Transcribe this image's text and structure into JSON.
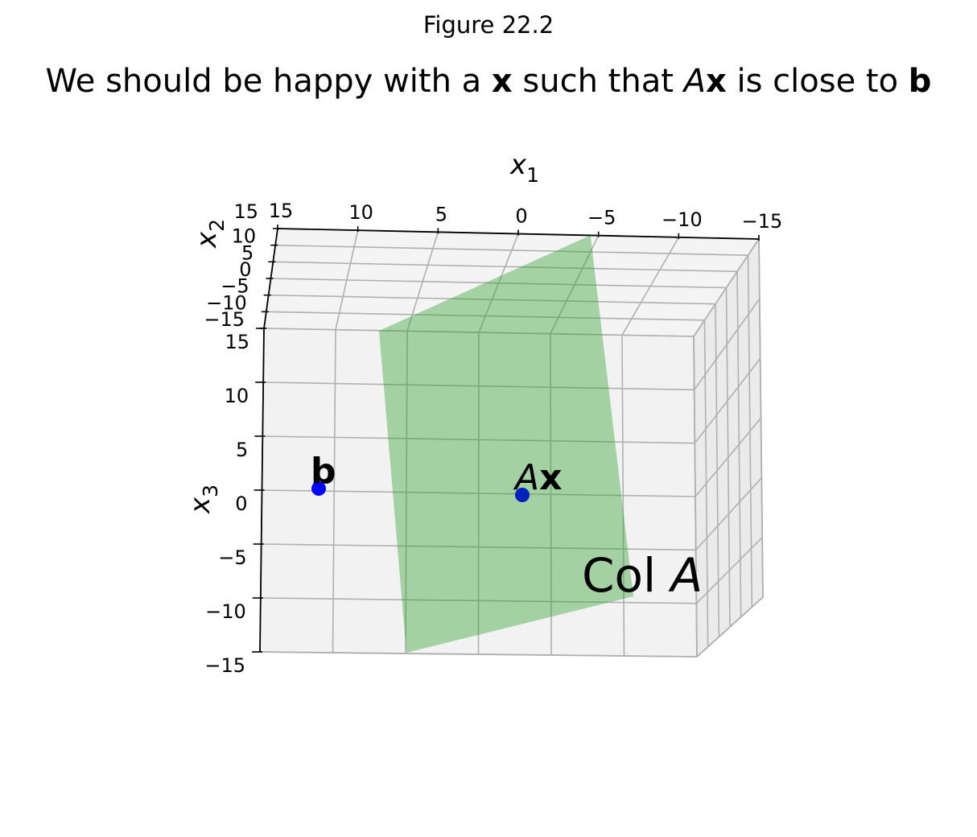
{
  "figure_label": "Figure 22.2",
  "title": {
    "part1": "We should be happy with a ",
    "x": "x",
    "part2": " such that ",
    "A": "A",
    "x2": "x",
    "part3": " is close to ",
    "b": "b"
  },
  "chart_data": {
    "type": "scatter",
    "projection": "3d",
    "axes": {
      "x1": {
        "label": "x",
        "subscript": "1",
        "ticks": [
          "15",
          "10",
          "5",
          "0",
          "−5",
          "−10",
          "−15"
        ],
        "lim": [
          -15,
          15
        ],
        "inverted": true
      },
      "x2": {
        "label": "x",
        "subscript": "2",
        "ticks": [
          "15",
          "10",
          "5",
          "0",
          "−5",
          "−10",
          "−15"
        ],
        "lim": [
          -15,
          15
        ]
      },
      "x3": {
        "label": "x",
        "subscript": "3",
        "ticks": [
          "15",
          "10",
          "5",
          "0",
          "−5",
          "−10",
          "−15"
        ],
        "lim": [
          -15,
          15
        ]
      }
    },
    "grid": true,
    "points": [
      {
        "label": "b",
        "x1": 12.5,
        "x2": 0,
        "x3": 0,
        "color": "#0000ff"
      },
      {
        "label_italic": "A",
        "label_bold": "x",
        "x1": 0,
        "x2": 0,
        "x3": -0.3,
        "color": "#0022bb"
      }
    ],
    "plane": {
      "label_text": "Col ",
      "label_italic": "A",
      "color": "#2ca02c",
      "alpha": 0.4
    }
  }
}
